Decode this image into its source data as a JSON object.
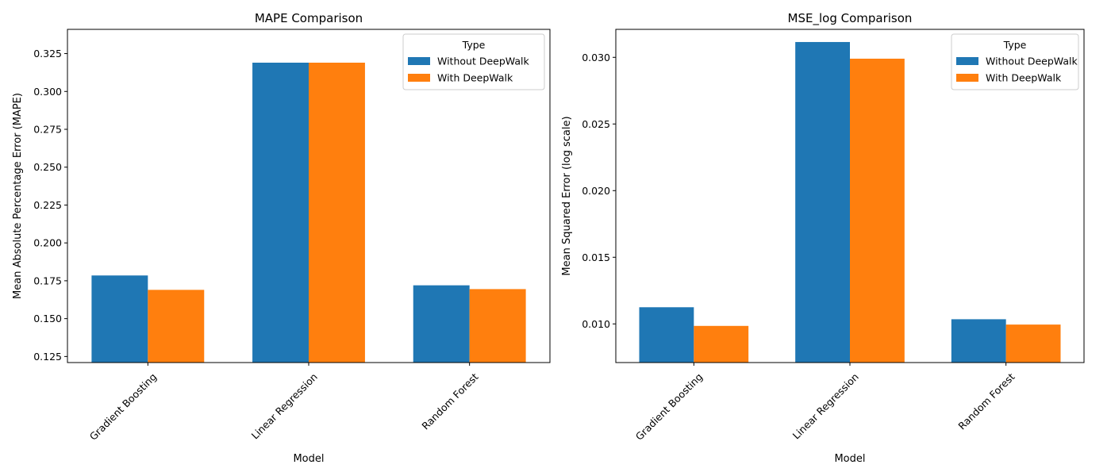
{
  "chart_data": [
    {
      "type": "bar",
      "title": "MAPE Comparison",
      "xlabel": "Model",
      "ylabel": "Mean Absolute Percentage Error (MAPE)",
      "categories": [
        "Gradient Boosting",
        "Linear Regression",
        "Random Forest"
      ],
      "series": [
        {
          "name": "Without DeepWalk",
          "values": [
            0.1785,
            0.319,
            0.172
          ],
          "color": "#1f77b4"
        },
        {
          "name": "With DeepWalk",
          "values": [
            0.169,
            0.319,
            0.1695
          ],
          "color": "#ff7f0e"
        }
      ],
      "ylim": [
        0.121,
        0.341
      ],
      "yticks": [
        0.125,
        0.15,
        0.175,
        0.2,
        0.225,
        0.25,
        0.275,
        0.3,
        0.325
      ],
      "ytick_labels": [
        "0.125",
        "0.150",
        "0.175",
        "0.200",
        "0.225",
        "0.250",
        "0.275",
        "0.300",
        "0.325"
      ],
      "legend_title": "Type",
      "legend_position": "top-right",
      "grid": false
    },
    {
      "type": "bar",
      "title": "MSE_log Comparison",
      "xlabel": "Model",
      "ylabel": "Mean Squared Error (log scale)",
      "categories": [
        "Gradient Boosting",
        "Linear Regression",
        "Random Forest"
      ],
      "series": [
        {
          "name": "Without DeepWalk",
          "values": [
            0.01125,
            0.03115,
            0.01035
          ],
          "color": "#1f77b4"
        },
        {
          "name": "With DeepWalk",
          "values": [
            0.00985,
            0.0299,
            0.00995
          ],
          "color": "#ff7f0e"
        }
      ],
      "ylim": [
        0.0071,
        0.0321
      ],
      "yticks": [
        0.01,
        0.015,
        0.02,
        0.025,
        0.03
      ],
      "ytick_labels": [
        "0.010",
        "0.015",
        "0.020",
        "0.025",
        "0.030"
      ],
      "legend_title": "Type",
      "legend_position": "top-right",
      "grid": false
    }
  ]
}
